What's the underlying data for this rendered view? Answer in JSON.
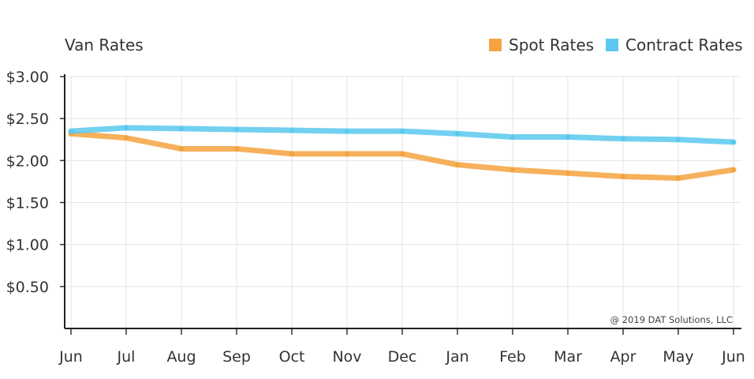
{
  "chart_data": {
    "type": "line",
    "title": "Van Rates",
    "categories": [
      "Jun",
      "Jul",
      "Aug",
      "Sep",
      "Oct",
      "Nov",
      "Dec",
      "Jan",
      "Feb",
      "Mar",
      "Apr",
      "May",
      "Jun"
    ],
    "y_ticks": [
      3.0,
      2.5,
      2.0,
      1.5,
      1.0,
      0.5
    ],
    "y_tick_labels": [
      "$3.00",
      "$2.50",
      "$2.00",
      "$1.50",
      "$1.00",
      "$0.50"
    ],
    "ylim": [
      0,
      3.0
    ],
    "grid": true,
    "legend_position": "top-right",
    "series": [
      {
        "name": "Spot Rates",
        "color": "#f5a340",
        "values": [
          2.32,
          2.27,
          2.14,
          2.14,
          2.08,
          2.08,
          2.08,
          1.95,
          1.89,
          1.85,
          1.81,
          1.79,
          1.89
        ]
      },
      {
        "name": "Contract Rates",
        "color": "#5bc8ef",
        "values": [
          2.35,
          2.39,
          2.38,
          2.37,
          2.36,
          2.35,
          2.35,
          2.32,
          2.28,
          2.28,
          2.26,
          2.25,
          2.22
        ]
      }
    ],
    "credit": "@ 2019 DAT Solutions, LLC"
  }
}
